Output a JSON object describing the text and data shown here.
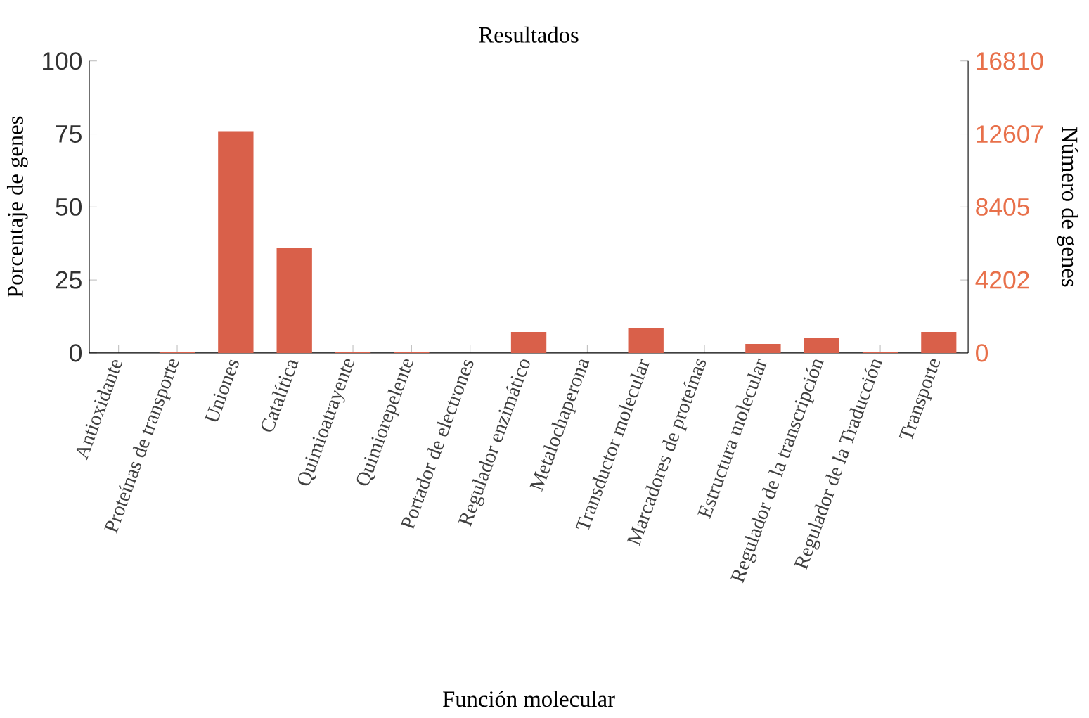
{
  "chart_data": {
    "type": "bar",
    "title": "Resultados",
    "xlabel": "Función molecular",
    "ylabel": "Porcentaje de genes",
    "y2label": "Número de genes",
    "categories": [
      "Antioxidante",
      "Proteínas de transporte",
      "Uniones",
      "Catalítica",
      "Quimioatrayente",
      "Quimiorepelente",
      "Portador de electrones",
      "Regulador enzimático",
      "Metalochaperona",
      "Transductor molecular",
      "Marcadores de proteínas",
      "Estructura molecular",
      "Regulador de la transcripción",
      "Regulador de la Traducción",
      "Transporte"
    ],
    "values": [
      0,
      0.3,
      76,
      36,
      0.2,
      0.2,
      0,
      7.2,
      0,
      8.4,
      0,
      3.1,
      5.3,
      0.3,
      7.2
    ],
    "color": "#d9604a",
    "ylim": [
      0,
      100
    ],
    "yticks": [
      0,
      25,
      50,
      75,
      100
    ],
    "y2lim": [
      0,
      16810
    ],
    "y2ticks": [
      0,
      4202,
      8405,
      12607,
      16810
    ],
    "grid": false
  }
}
